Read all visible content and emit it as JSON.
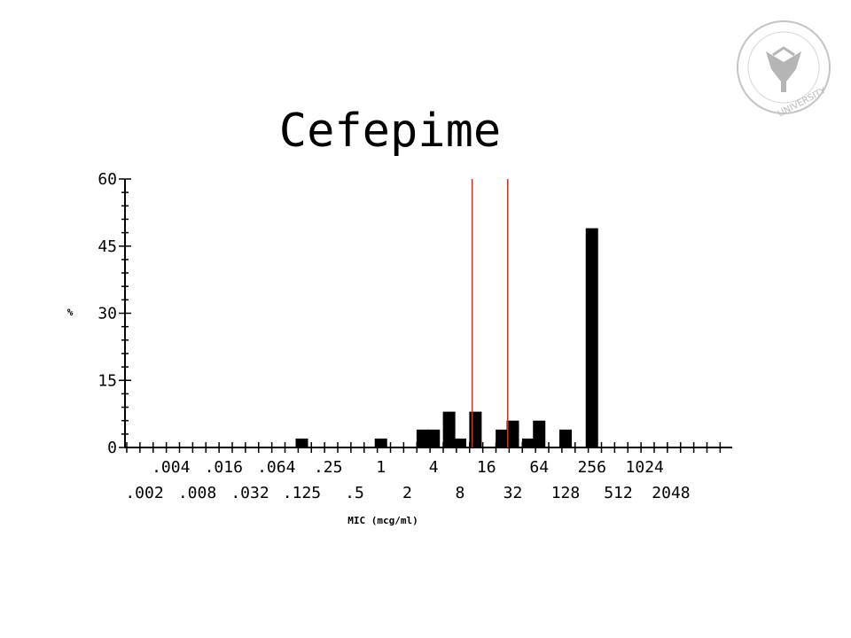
{
  "chart_data": {
    "type": "bar",
    "title": "Cefepime",
    "xlabel": "MIC (mcg/ml)",
    "ylabel": "%",
    "ylim": [
      0,
      60
    ],
    "yticks": [
      "0",
      "15",
      "30",
      "45",
      "60"
    ],
    "x_scale": "log2",
    "x_tick_labels_upper": [
      ".004",
      ".016",
      ".064",
      ".25",
      "1",
      "4",
      "16",
      "64",
      "256",
      "1024"
    ],
    "x_tick_labels_lower": [
      ".002",
      ".008",
      ".032",
      ".125",
      ".5",
      "2",
      "8",
      "32",
      "128",
      "512",
      "2048"
    ],
    "categories": [
      ".125",
      "1",
      "3",
      "4",
      "6",
      "8",
      "12",
      "24",
      "32",
      "48",
      "64",
      "128",
      "256"
    ],
    "values": [
      2,
      2,
      4,
      4,
      8,
      2,
      8,
      4,
      6,
      2,
      6,
      4,
      49
    ],
    "breakpoints": [
      11,
      28
    ],
    "breakpoint_color": "#c0392b",
    "bar_color": "#000000",
    "grid": false,
    "legend": "none"
  },
  "logo": {
    "text": "UNIVERSITY",
    "color": "#b8b8b8"
  }
}
